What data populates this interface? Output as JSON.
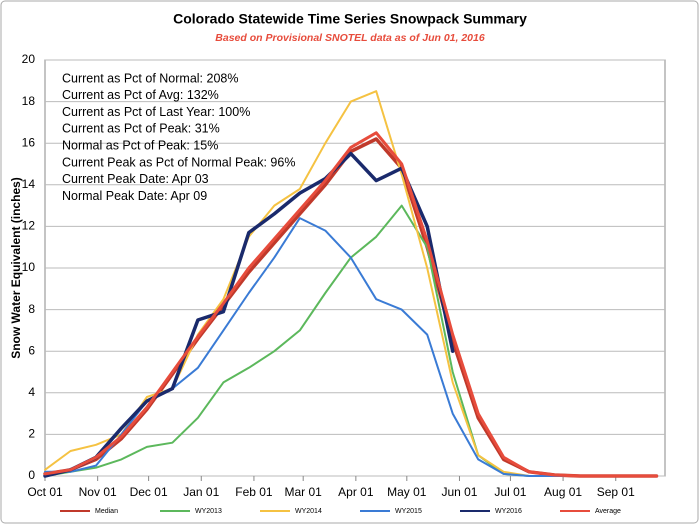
{
  "chart_data": {
    "type": "line",
    "title": "Colorado Statewide Time Series Snowpack Summary",
    "subtitle": "Based on Provisional SNOTEL data as of Jun 01, 2016",
    "y_label": "Snow Water Equivalent (inches)",
    "annotations": [
      "Current as Pct of Normal: 208%",
      "Current as Pct of Avg: 132%",
      "Current as Pct of Last Year: 100%",
      "Current as Pct of Peak: 31%",
      "Normal as Pct of Peak: 15%",
      "Current Peak as Pct of Normal Peak: 96%",
      "Current Peak Date: Apr 03",
      "Normal Peak Date: Apr 09"
    ],
    "x": [
      0,
      15,
      30,
      45,
      60,
      75,
      90,
      105,
      120,
      135,
      150,
      165,
      180,
      195,
      210,
      225,
      240,
      255,
      270,
      285,
      300,
      315,
      330,
      345,
      360
    ],
    "xlim": [
      0,
      365
    ],
    "xticks": [
      {
        "value": 0,
        "label": "Oct 01"
      },
      {
        "value": 31,
        "label": "Nov 01"
      },
      {
        "value": 61,
        "label": "Dec 01"
      },
      {
        "value": 92,
        "label": "Jan 01"
      },
      {
        "value": 123,
        "label": "Feb 01"
      },
      {
        "value": 152,
        "label": "Mar 01"
      },
      {
        "value": 183,
        "label": "Apr 01"
      },
      {
        "value": 213,
        "label": "May 01"
      },
      {
        "value": 244,
        "label": "Jun 01"
      },
      {
        "value": 274,
        "label": "Jul 01"
      },
      {
        "value": 305,
        "label": "Aug 01"
      },
      {
        "value": 336,
        "label": "Sep 01"
      }
    ],
    "ylim": [
      0,
      20
    ],
    "yticks": [
      0,
      2,
      4,
      6,
      8,
      10,
      12,
      14,
      16,
      18,
      20
    ],
    "grid": true,
    "series": [
      {
        "name": "Median",
        "color": "#c0392b",
        "line_width": 3.5,
        "values": [
          0.1,
          0.3,
          0.8,
          1.8,
          3.2,
          4.9,
          6.6,
          8.2,
          9.8,
          11.2,
          12.6,
          14.0,
          15.6,
          16.2,
          14.8,
          11.0,
          6.5,
          2.8,
          0.8,
          0.2,
          0.05,
          0,
          0,
          0,
          0
        ]
      },
      {
        "name": "WY2013",
        "color": "#5cb85c",
        "line_width": 2,
        "values": [
          0,
          0.2,
          0.4,
          0.8,
          1.4,
          1.6,
          2.8,
          4.5,
          5.2,
          6.0,
          7.0,
          8.8,
          10.5,
          11.5,
          13.0,
          11.0,
          5.0,
          1.0,
          0.1,
          0,
          0,
          0,
          0,
          0,
          0
        ]
      },
      {
        "name": "WY2014",
        "color": "#f5c242",
        "line_width": 2,
        "values": [
          0.3,
          1.2,
          1.5,
          2.0,
          3.8,
          4.2,
          6.8,
          8.5,
          11.5,
          13.0,
          13.8,
          16.0,
          18.0,
          18.5,
          14.5,
          10.0,
          4.5,
          1.0,
          0.2,
          0,
          0,
          0,
          0,
          0,
          0
        ]
      },
      {
        "name": "WY2015",
        "color": "#3a7bd5",
        "line_width": 2,
        "values": [
          0.2,
          0.2,
          0.5,
          2.0,
          3.6,
          4.2,
          5.2,
          7.0,
          8.8,
          10.5,
          12.4,
          11.8,
          10.5,
          8.5,
          8.0,
          6.8,
          3.0,
          0.8,
          0.1,
          0,
          0,
          0,
          0,
          0,
          0
        ]
      },
      {
        "name": "WY2016",
        "color": "#1a2a6c",
        "line_width": 3.5,
        "values": [
          0,
          0.3,
          0.9,
          2.3,
          3.6,
          4.2,
          7.5,
          7.9,
          11.7,
          12.6,
          13.6,
          14.3,
          15.5,
          14.2,
          14.8,
          12.0,
          6.0,
          null,
          null,
          null,
          null,
          null,
          null,
          null,
          null
        ]
      },
      {
        "name": "Average",
        "color": "#e74c3c",
        "line_width": 3,
        "values": [
          0.1,
          0.3,
          0.9,
          1.9,
          3.3,
          5.0,
          6.7,
          8.3,
          10.0,
          11.4,
          12.8,
          14.2,
          15.8,
          16.5,
          15.0,
          11.3,
          6.8,
          3.0,
          0.9,
          0.2,
          0.05,
          0,
          0,
          0,
          0
        ]
      }
    ]
  }
}
